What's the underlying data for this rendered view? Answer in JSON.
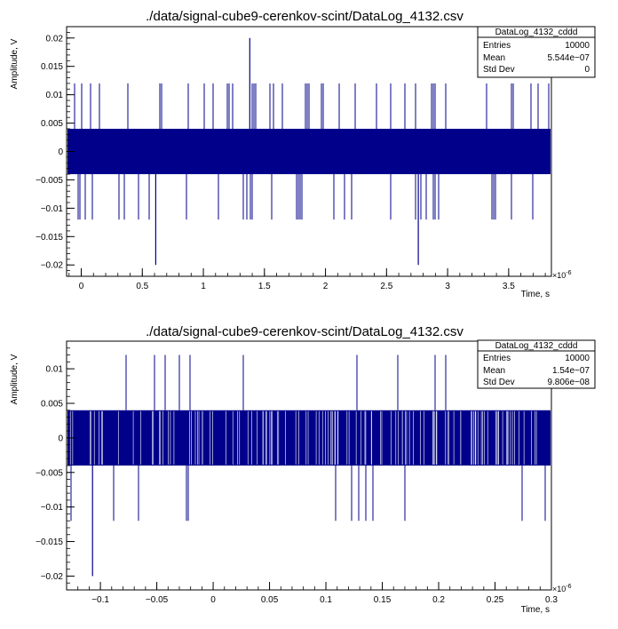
{
  "chart_data": [
    {
      "type": "line",
      "title": "./data/signal-cube9-cerenkov-scint/DataLog_4132.csv",
      "xlabel": "Time, s",
      "ylabel": "Amplitude, V",
      "x_exponent": "×10",
      "x_exponent_power": "-6",
      "xlim": [
        -0.12,
        3.85
      ],
      "ylim": [
        -0.022,
        0.022
      ],
      "x_ticks": [
        0,
        0.5,
        1,
        1.5,
        2,
        2.5,
        3,
        3.5
      ],
      "x_tick_labels": [
        "0",
        "0.5",
        "1",
        "1.5",
        "2",
        "2.5",
        "3",
        "3.5"
      ],
      "y_ticks": [
        0.02,
        0.015,
        0.01,
        0.005,
        0,
        -0.005,
        -0.01,
        -0.015,
        -0.02
      ],
      "y_tick_labels": [
        "0.02",
        "0.015",
        "0.01",
        "0.005",
        "0",
        "−0.005",
        "−0.01",
        "−0.015",
        "−0.02"
      ],
      "levels": [
        -0.02,
        -0.012,
        -0.004,
        0.004,
        0.012,
        0.02
      ],
      "band": [
        -0.004,
        0.004
      ],
      "sample_count": 10000,
      "spikes": [
        {
          "x": 1.38,
          "y": 0.02
        },
        {
          "x": 0.61,
          "y": -0.02
        },
        {
          "x": 2.76,
          "y": -0.02
        }
      ],
      "stats": {
        "name": "DataLog_4132_cddd",
        "rows": [
          {
            "label": "Entries",
            "value": "10000"
          },
          {
            "label": "Mean",
            "value": "5.544e−07"
          },
          {
            "label": "Std Dev",
            "value": "0"
          }
        ]
      }
    },
    {
      "type": "line",
      "title": "./data/signal-cube9-cerenkov-scint/DataLog_4132.csv",
      "xlabel": "Time, s",
      "ylabel": "Amplitude, V",
      "x_exponent": "×10",
      "x_exponent_power": "-6",
      "xlim": [
        -0.13,
        0.3
      ],
      "ylim": [
        -0.022,
        0.014
      ],
      "x_ticks": [
        -0.1,
        -0.05,
        0,
        0.05,
        0.1,
        0.15,
        0.2,
        0.25,
        0.3
      ],
      "x_tick_labels": [
        "−0.1",
        "−0.05",
        "0",
        "0.05",
        "0.1",
        "0.15",
        "0.2",
        "0.25",
        "0.3"
      ],
      "y_ticks": [
        0.01,
        0.005,
        0,
        -0.005,
        -0.01,
        -0.015,
        -0.02
      ],
      "y_tick_labels": [
        "0.01",
        "0.005",
        "0",
        "−0.005",
        "−0.01",
        "−0.015",
        "−0.02"
      ],
      "levels": [
        -0.02,
        -0.012,
        -0.004,
        0.004,
        0.012
      ],
      "band": [
        -0.004,
        0.004
      ],
      "spikes": [
        {
          "x": -0.107,
          "y": -0.02
        }
      ],
      "stats": {
        "name": "DataLog_4132_cddd",
        "rows": [
          {
            "label": "Entries",
            "value": "10000"
          },
          {
            "label": "Mean",
            "value": "1.54e−07"
          },
          {
            "label": "Std Dev",
            "value": "9.806e−08"
          }
        ]
      }
    }
  ],
  "colors": {
    "trace": "#00008b",
    "frame": "#000000",
    "background": "#ffffff"
  }
}
